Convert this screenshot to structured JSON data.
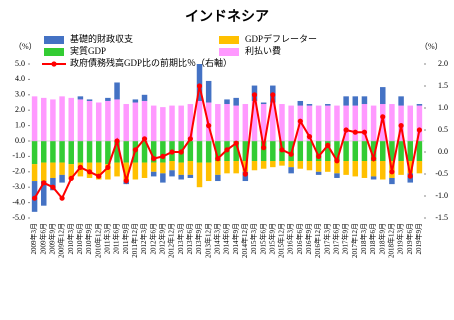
{
  "chart_data": {
    "type": "stacked-bar-line",
    "title": "インドネシア",
    "y_unit": "（%）",
    "y2_unit": "（%）",
    "categories": [
      "2009年3月",
      "2009年6月",
      "2009年9月",
      "2009年12月",
      "2010年3月",
      "2010年6月",
      "2010年9月",
      "2010年12月",
      "2011年3月",
      "2011年6月",
      "2011年9月",
      "2011年12月",
      "2012年3月",
      "2012年6月",
      "2012年9月",
      "2012年12月",
      "2013年3月",
      "2013年6月",
      "2013年9月",
      "2013年12月",
      "2014年3月",
      "2014年6月",
      "2014年9月",
      "2014年12月",
      "2015年3月",
      "2015年6月",
      "2015年9月",
      "2015年12月",
      "2016年3月",
      "2016年6月",
      "2016年9月",
      "2016年12月",
      "2017年3月",
      "2017年6月",
      "2017年9月",
      "2017年12月",
      "2018年3月",
      "2018年6月",
      "2018年9月",
      "2018年12月",
      "2019年3月",
      "2019年6月",
      "2019年9月"
    ],
    "series": [
      {
        "name": "基礎的財政収支",
        "color": "#4472c4",
        "values": [
          -2.0,
          -1.6,
          -0.8,
          -0.5,
          0.0,
          0.2,
          0.1,
          0.0,
          0.2,
          1.1,
          -0.2,
          0.2,
          0.4,
          -0.3,
          -0.6,
          -0.4,
          -0.3,
          -0.2,
          2.4,
          1.4,
          -0.4,
          0.3,
          0.5,
          -0.6,
          1.0,
          0.1,
          1.1,
          0.0,
          -0.4,
          0.3,
          0.1,
          -0.2,
          0.1,
          -0.3,
          0.6,
          0.6,
          0.5,
          -0.2,
          1.1,
          -0.4,
          0.6,
          -0.6,
          0.1
        ]
      },
      {
        "name": "GDPデフレーター",
        "color": "#ffc000",
        "values": [
          -1.1,
          -1.2,
          -1.0,
          -0.8,
          -1.0,
          -0.9,
          -1.0,
          -1.1,
          -1.0,
          -0.9,
          -1.2,
          -1.1,
          -1.0,
          -0.6,
          -0.7,
          -0.6,
          -0.8,
          -0.9,
          -1.6,
          -1.2,
          -0.9,
          -0.8,
          -0.8,
          -0.7,
          -0.6,
          -0.5,
          -0.4,
          -0.3,
          -0.4,
          -0.5,
          -0.6,
          -0.7,
          -0.7,
          -0.8,
          -0.9,
          -1.0,
          -1.1,
          -1.0,
          -1.2,
          -1.1,
          -0.9,
          -0.8,
          -0.8
        ]
      },
      {
        "name": "実質GDP",
        "color": "#33cc33",
        "values": [
          -1.5,
          -1.4,
          -1.4,
          -1.4,
          -1.5,
          -1.4,
          -1.4,
          -1.4,
          -1.5,
          -1.4,
          -1.4,
          -1.4,
          -1.4,
          -1.4,
          -1.4,
          -1.3,
          -1.4,
          -1.3,
          -1.4,
          -1.4,
          -1.3,
          -1.3,
          -1.3,
          -1.3,
          -1.3,
          -1.3,
          -1.3,
          -1.3,
          -1.3,
          -1.3,
          -1.3,
          -1.3,
          -1.3,
          -1.3,
          -1.3,
          -1.3,
          -1.3,
          -1.3,
          -1.3,
          -1.3,
          -1.3,
          -1.3,
          -1.3
        ]
      },
      {
        "name": "利払い費",
        "color": "#ff99ff",
        "values": [
          2.9,
          2.8,
          2.7,
          2.9,
          2.8,
          2.7,
          2.6,
          2.5,
          2.6,
          2.7,
          2.4,
          2.5,
          2.6,
          2.3,
          2.2,
          2.3,
          2.3,
          2.4,
          2.6,
          2.5,
          2.4,
          2.4,
          2.3,
          2.4,
          2.6,
          2.4,
          2.5,
          2.4,
          2.3,
          2.3,
          2.3,
          2.3,
          2.3,
          2.3,
          2.3,
          2.3,
          2.4,
          2.3,
          2.4,
          2.4,
          2.3,
          2.3,
          2.3
        ]
      },
      {
        "name": "政府債務残高GDP比の前期比％（右軸）",
        "color": "#ff0000",
        "axis": "y2",
        "values": [
          -1.05,
          -0.7,
          -0.8,
          -1.05,
          -0.6,
          -0.35,
          -0.45,
          -0.55,
          -0.35,
          0.25,
          -0.65,
          0.05,
          0.3,
          -0.15,
          -0.1,
          0.0,
          0.0,
          0.3,
          1.5,
          0.6,
          -0.15,
          0.05,
          0.2,
          -0.5,
          1.3,
          0.1,
          1.3,
          0.05,
          -0.05,
          0.7,
          0.35,
          -0.1,
          0.15,
          -0.2,
          0.5,
          0.45,
          0.45,
          -0.15,
          0.8,
          -0.45,
          0.6,
          -0.55,
          0.5
        ]
      }
    ],
    "ylim": [
      -5,
      5
    ],
    "yticks": [
      {
        "value": 5,
        "label": "5.0"
      },
      {
        "value": 4,
        "label": "4.0"
      },
      {
        "value": 3,
        "label": "3.0"
      },
      {
        "value": 2,
        "label": "2.0"
      },
      {
        "value": 1,
        "label": "1.0"
      },
      {
        "value": 0,
        "label": "0.0"
      },
      {
        "value": -1,
        "label": "-1.0"
      },
      {
        "value": -2,
        "label": "-2.0"
      },
      {
        "value": -3,
        "label": "-3.0"
      },
      {
        "value": -4,
        "label": "-4.0"
      },
      {
        "value": -5,
        "label": "-5.0"
      }
    ],
    "y2lim": [
      -1.5,
      2.0
    ],
    "y2ticks": [
      {
        "value": 2,
        "label": "2.0"
      },
      {
        "value": 1.5,
        "label": "1.5"
      },
      {
        "value": 1,
        "label": "1.0"
      },
      {
        "value": 0.5,
        "label": "0.5"
      },
      {
        "value": 0,
        "label": "0.0"
      },
      {
        "value": -0.5,
        "label": "-0.5"
      },
      {
        "value": -1,
        "label": "-1.0"
      },
      {
        "value": -1.5,
        "label": "-1.5"
      }
    ],
    "grid": false
  }
}
